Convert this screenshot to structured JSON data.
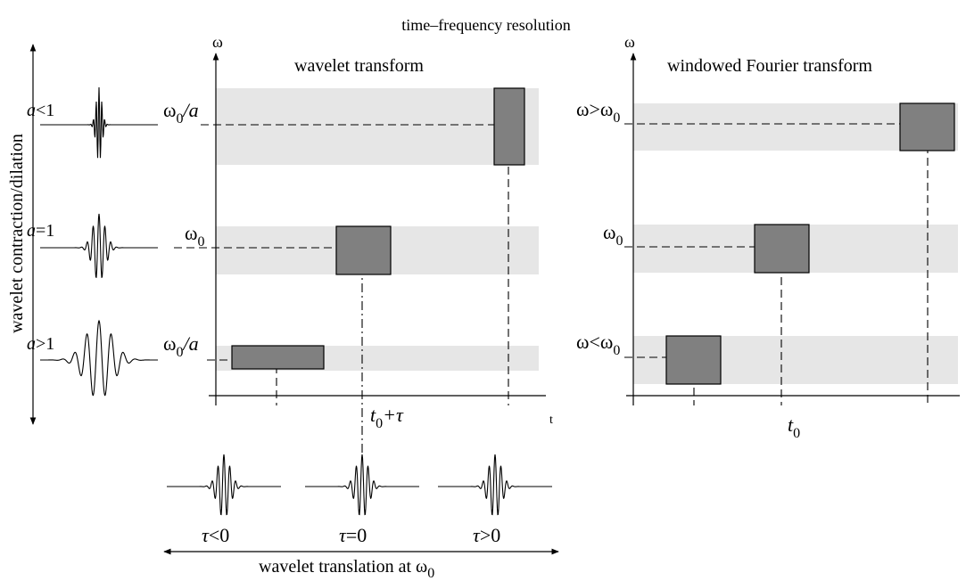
{
  "title": "time–frequency resolution",
  "left_axis_label": "wavelet contraction/dilation",
  "bottom_axis_label": "wavelet translation at ω",
  "bottom_axis_label_sub": "0",
  "wavelet_panel": {
    "title": "wavelet transform",
    "y_axis_symbol": "ω",
    "x_axis_symbol": "t",
    "row_labels": [
      {
        "main": "ω",
        "sub": "0",
        "tail": "/a"
      },
      {
        "main": "ω",
        "sub": "0",
        "tail": ""
      },
      {
        "main": "ω",
        "sub": "0",
        "tail": "/a"
      }
    ],
    "time_label": {
      "main": "t",
      "sub": "0",
      "tail": "+τ"
    }
  },
  "fourier_panel": {
    "title": "windowed Fourier transform",
    "y_axis_symbol": "ω",
    "row_labels": [
      {
        "main": "ω>ω",
        "sub": "0"
      },
      {
        "main": "ω",
        "sub": "0"
      },
      {
        "main": "ω<ω",
        "sub": "0"
      }
    ],
    "time_label": {
      "main": "t",
      "sub": "0"
    }
  },
  "scale_labels": [
    {
      "var": "a",
      "rel": "<1"
    },
    {
      "var": "a",
      "rel": "=1"
    },
    {
      "var": "a",
      "rel": ">1"
    }
  ],
  "translation_labels": [
    {
      "var": "τ",
      "rel": "<0"
    },
    {
      "var": "τ",
      "rel": "=0"
    },
    {
      "var": "τ",
      "rel": ">0"
    }
  ]
}
